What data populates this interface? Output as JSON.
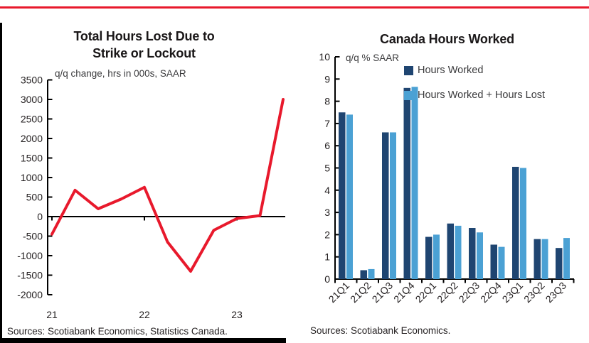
{
  "page": {
    "accent_color": "#E8192C",
    "background": "#FFFFFF"
  },
  "left_panel": {
    "title_line1": "Total Hours Lost Due to",
    "title_line2": "Strike or Lockout",
    "subtitle": "q/q change, hrs in 000s, SAAR",
    "source": "Sources: Scotiabank Economics, Statistics Canada."
  },
  "right_panel": {
    "title": "Canada Hours Worked",
    "subtitle": "q/q % SAAR",
    "source": "Sources: Scotiabank Economics."
  },
  "chart_data": [
    {
      "type": "line",
      "title": "Total Hours Lost Due to Strike or Lockout",
      "subtitle": "q/q change, hrs in 000s, SAAR",
      "x": [
        "21Q1",
        "21Q2",
        "21Q3",
        "21Q4",
        "22Q1",
        "22Q2",
        "22Q3",
        "22Q4",
        "23Q1",
        "23Q2",
        "23Q3"
      ],
      "values": [
        -450,
        675,
        200,
        450,
        750,
        -650,
        -1400,
        -350,
        -50,
        25,
        3000
      ],
      "line_color": "#E8192C",
      "ylim": [
        -2000,
        3500
      ],
      "yticks": [
        3500,
        3000,
        2500,
        2000,
        1500,
        1000,
        500,
        0,
        -500,
        -1000,
        -1500,
        -2000
      ],
      "xticks": [
        "21",
        "22",
        "23"
      ],
      "grid": false,
      "zero_line": true,
      "legend_position": "none"
    },
    {
      "type": "bar",
      "title": "Canada Hours Worked",
      "subtitle": "q/q % SAAR",
      "categories": [
        "21Q1",
        "21Q2",
        "21Q3",
        "21Q4",
        "22Q1",
        "22Q2",
        "22Q3",
        "22Q4",
        "23Q1",
        "23Q2",
        "23Q3"
      ],
      "series": [
        {
          "name": "Hours Worked",
          "color": "#1F4571",
          "values": [
            7.5,
            0.4,
            6.6,
            8.6,
            1.9,
            2.5,
            2.3,
            1.55,
            5.05,
            1.8,
            1.4
          ]
        },
        {
          "name": "Hours Worked + Hours Lost",
          "color": "#4BA1D4",
          "values": [
            7.4,
            0.45,
            6.6,
            8.65,
            2.0,
            2.4,
            2.1,
            1.45,
            5.0,
            1.8,
            1.85
          ]
        }
      ],
      "ylim": [
        0,
        10
      ],
      "yticks": [
        10,
        9,
        8,
        7,
        6,
        5,
        4,
        3,
        2,
        1,
        0
      ],
      "grid": false,
      "legend_position": "top-right"
    }
  ]
}
